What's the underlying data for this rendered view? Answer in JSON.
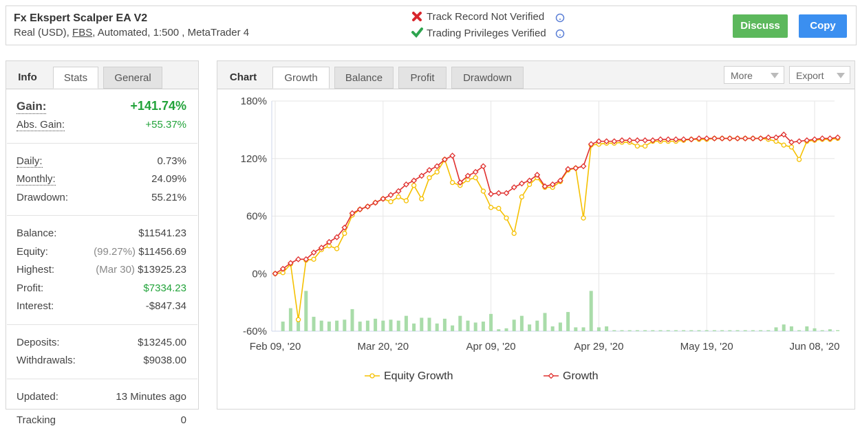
{
  "header": {
    "title": "Fx Ekspert Scalper EA V2",
    "account_prefix": "Real (USD),",
    "broker": "FBS",
    "account_details": ", Automated, 1:500 , MetaTrader 4",
    "verification": [
      "Track Record Not Verified",
      "Trading Privileges Verified"
    ],
    "buttons": [
      "Discuss",
      "Copy"
    ]
  },
  "info": {
    "tabs": [
      "Info",
      "Stats",
      "General"
    ],
    "sections": [
      [
        {
          "label": "Gain:",
          "value": "+141.74%",
          "dotted": true,
          "big": true,
          "color": "#22a33a"
        },
        {
          "label": "Abs. Gain:",
          "value": "+55.37%",
          "dotted": true,
          "color": "#22a33a"
        }
      ],
      [
        {
          "label": "Daily:",
          "value": "0.73%",
          "dotted": true
        },
        {
          "label": "Monthly:",
          "value": "24.09%",
          "dotted": true
        },
        {
          "label": "Drawdown:",
          "value": "55.21%"
        }
      ],
      [
        {
          "label": "Balance:",
          "value": "$11541.23"
        },
        {
          "label": "Equity:",
          "note": "(99.27%)",
          "value": "$11456.69"
        },
        {
          "label": "Highest:",
          "note": "(Mar 30)",
          "value": "$13925.23"
        },
        {
          "label": "Profit:",
          "value": "$7334.23",
          "color": "#22a33a"
        },
        {
          "label": "Interest:",
          "value": "-$847.34"
        }
      ],
      [
        {
          "label": "Deposits:",
          "value": "$13245.00"
        },
        {
          "label": "Withdrawals:",
          "value": "$9038.00"
        }
      ],
      [
        {
          "label": "Updated:",
          "value": "13 Minutes ago"
        },
        {
          "label": "Tracking",
          "value": "0"
        }
      ]
    ]
  },
  "chart_panel": {
    "tabs": [
      "Chart",
      "Growth",
      "Balance",
      "Profit",
      "Drawdown"
    ],
    "menus": [
      "More",
      "Export"
    ]
  },
  "chart_data": {
    "type": "line",
    "categories": [
      "Feb 09, '20",
      null,
      null,
      null,
      null,
      null,
      null,
      null,
      null,
      null,
      null,
      null,
      null,
      null,
      "Mar 20, '20",
      null,
      null,
      null,
      null,
      null,
      null,
      null,
      null,
      null,
      null,
      null,
      null,
      null,
      "Apr 09, '20",
      null,
      null,
      null,
      null,
      null,
      null,
      null,
      null,
      null,
      null,
      null,
      null,
      null,
      "Apr 29, '20",
      null,
      null,
      null,
      null,
      null,
      null,
      null,
      null,
      null,
      null,
      null,
      null,
      null,
      "May 19, '20",
      null,
      null,
      null,
      null,
      null,
      null,
      null,
      null,
      null,
      null,
      null,
      null,
      null,
      "Jun 08, '20",
      null,
      null,
      null
    ],
    "ylim": [
      -60,
      180
    ],
    "yticks": [
      {
        "value": -60,
        "label": "-60%"
      },
      {
        "value": 0,
        "label": "0%"
      },
      {
        "value": 60,
        "label": "60%"
      },
      {
        "value": 120,
        "label": "120%"
      },
      {
        "value": 180,
        "label": "180%"
      }
    ],
    "grid": true,
    "series": [
      {
        "name": "Equity Growth",
        "color": "#f5c000",
        "marker": "circle",
        "values": [
          0,
          1,
          10,
          -48,
          14,
          15,
          25,
          29,
          26,
          42,
          61,
          67,
          70,
          74,
          78,
          75,
          80,
          76,
          92,
          78,
          100,
          106,
          119,
          95,
          92,
          98,
          100,
          86,
          69,
          68,
          58,
          42,
          80,
          93,
          100,
          90,
          90,
          96,
          108,
          110,
          58,
          134,
          135,
          136,
          136,
          137,
          137,
          133,
          133,
          138,
          138,
          138,
          138,
          139,
          140,
          140,
          140,
          141,
          141,
          141,
          141,
          141,
          141,
          141,
          140,
          138,
          134,
          132,
          119,
          138,
          139,
          140,
          140,
          141
        ]
      },
      {
        "name": "Growth",
        "color": "#e0302e",
        "marker": "diamond",
        "values": [
          0,
          5,
          11,
          15,
          15,
          22,
          27,
          33,
          38,
          48,
          63,
          67,
          70,
          74,
          78,
          82,
          86,
          93,
          97,
          102,
          108,
          112,
          119,
          123,
          95,
          102,
          106,
          112,
          83,
          84,
          84,
          90,
          94,
          97,
          103,
          91,
          93,
          97,
          109,
          110,
          112,
          135,
          138,
          138,
          138,
          139,
          139,
          139,
          139,
          139,
          140,
          140,
          140,
          140,
          140,
          141,
          141,
          141,
          141,
          141,
          141,
          141,
          141,
          141,
          142,
          142,
          145,
          137,
          138,
          139,
          140,
          141,
          141,
          142
        ]
      },
      {
        "type": "bar",
        "color": "#a9dca9",
        "values": [
          -60,
          -50,
          -36,
          -48,
          -18,
          -45,
          -49,
          -50,
          -49,
          -48,
          -37,
          -50,
          -49,
          -47,
          -49,
          -48,
          -49,
          -44,
          -52,
          -46,
          -46,
          -52,
          -47,
          -54,
          -44,
          -49,
          -51,
          -50,
          -42,
          -58,
          -57,
          -48,
          -44,
          -53,
          -49,
          -41,
          -55,
          -51,
          -40,
          -56,
          -56,
          -18,
          -56,
          -55,
          -59,
          -59,
          -59,
          -59,
          -59,
          -59,
          -59,
          -59,
          -59,
          -59,
          -59,
          -59,
          -59,
          -59,
          -59,
          -59,
          -59,
          -59,
          -59,
          -59,
          -59,
          -56,
          -53,
          -55,
          -59,
          -55,
          -57,
          -59,
          -58,
          -59
        ]
      }
    ]
  }
}
